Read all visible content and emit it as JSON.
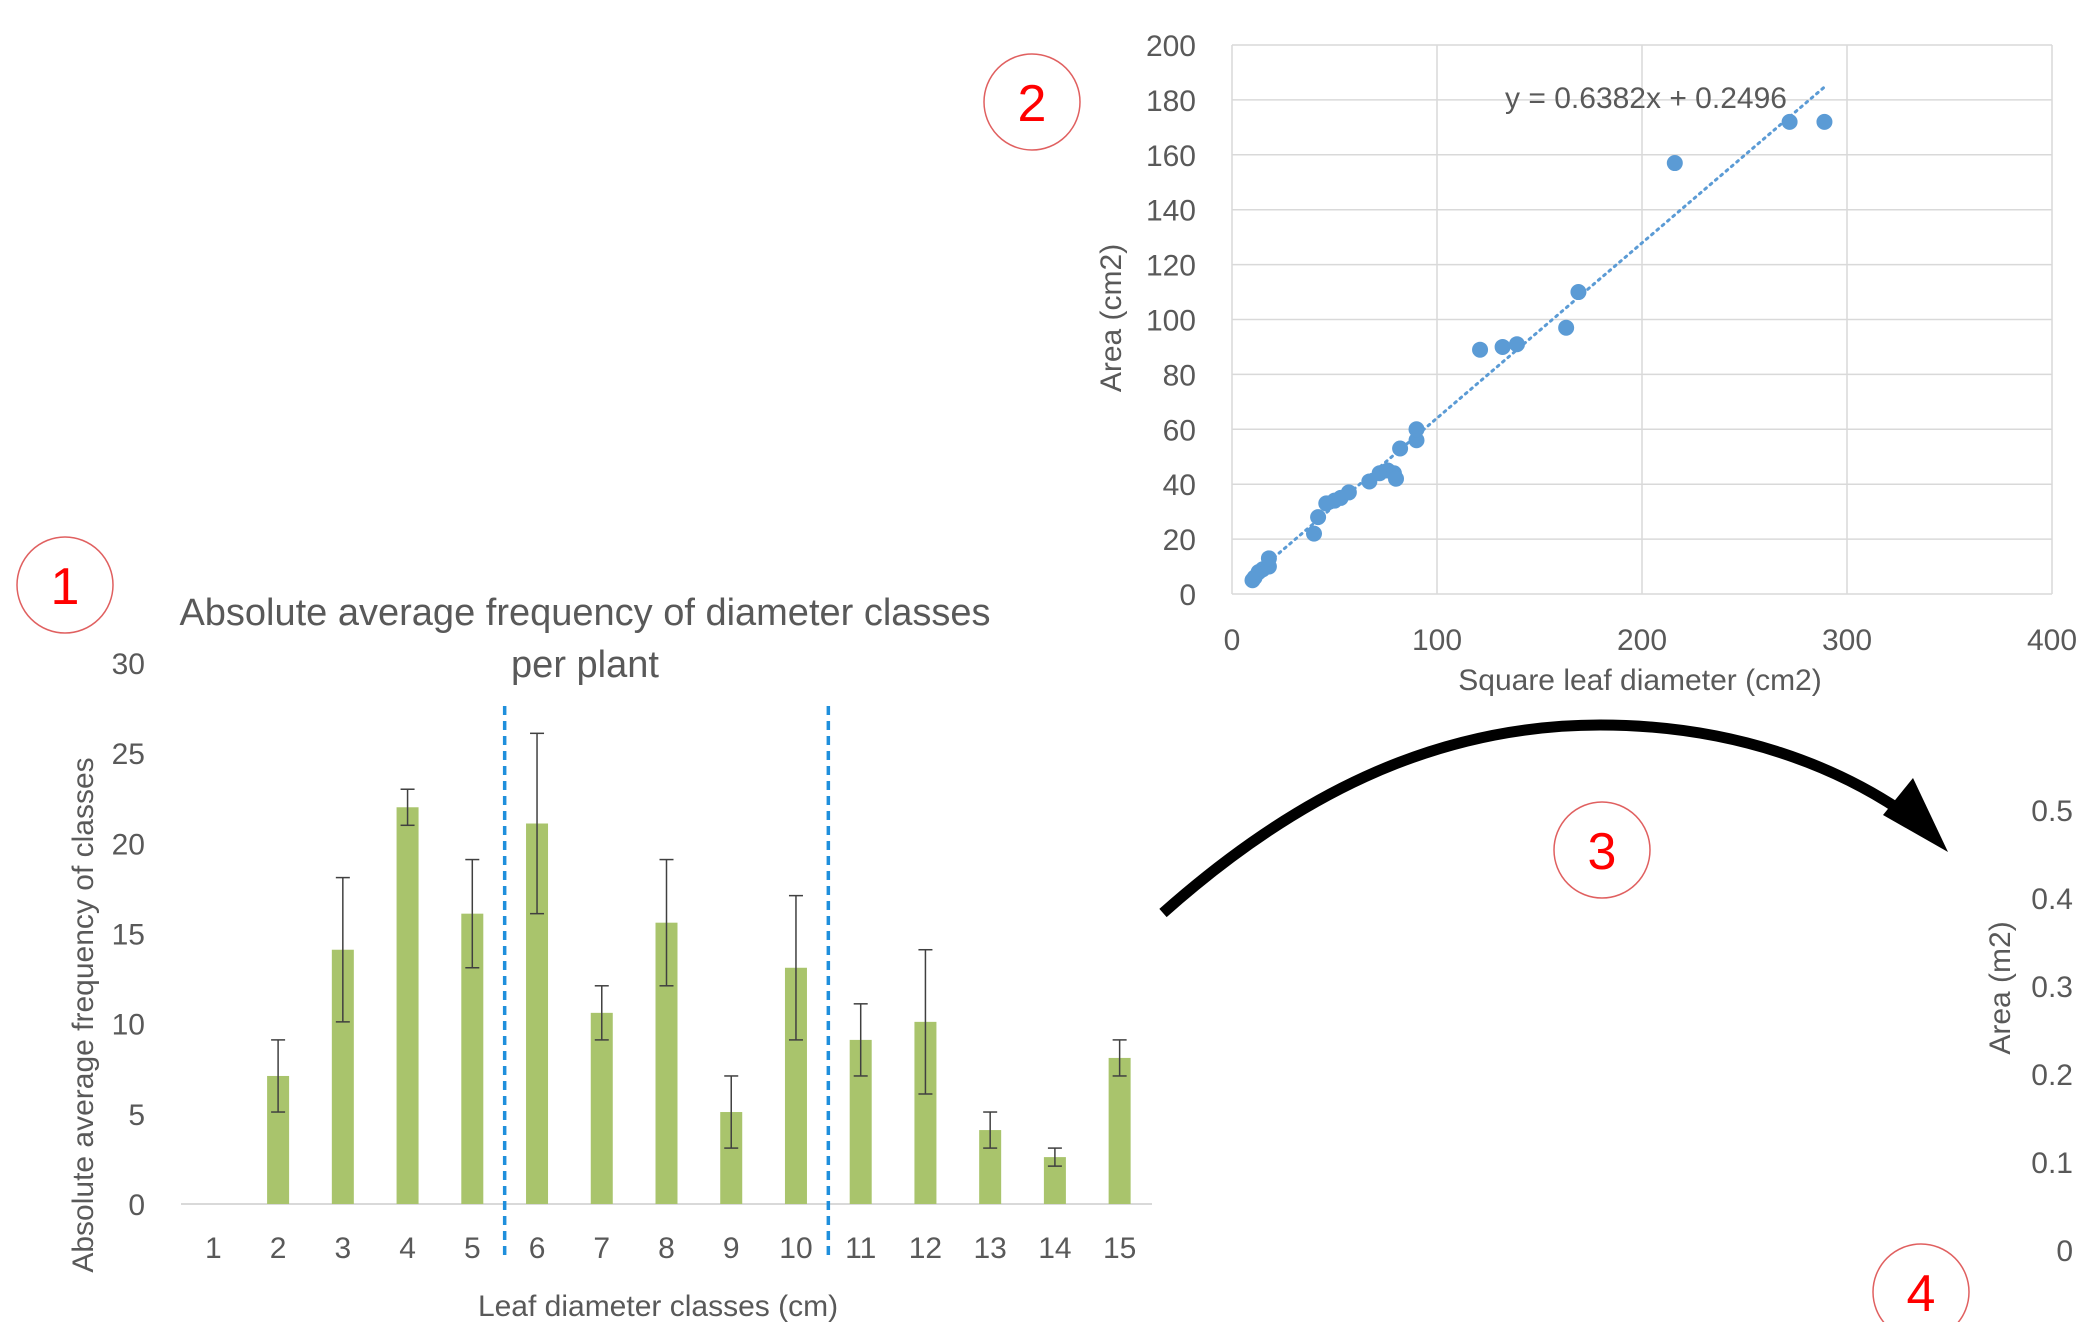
{
  "markers": [
    "1",
    "2",
    "3",
    "4"
  ],
  "chart_data": [
    {
      "type": "bar",
      "title_line1": "Absolute average frequency of diameter classes",
      "title_line2": "per plant",
      "xlabel": "Leaf diameter classes (cm)",
      "ylabel": "Absolute average frequency of classes",
      "categories": [
        "1",
        "2",
        "3",
        "4",
        "5",
        "6",
        "7",
        "8",
        "9",
        "10",
        "11",
        "12",
        "13",
        "14",
        "15"
      ],
      "values": [
        0,
        7.1,
        14.1,
        22.0,
        16.1,
        21.1,
        10.6,
        15.6,
        5.1,
        13.1,
        9.1,
        10.1,
        4.1,
        2.6,
        8.1
      ],
      "error_bars": [
        null,
        [
          5.1,
          9.1
        ],
        [
          10.1,
          18.1
        ],
        [
          21.0,
          23.0
        ],
        [
          13.1,
          19.1
        ],
        [
          16.1,
          26.1
        ],
        [
          9.1,
          12.1
        ],
        [
          12.1,
          19.1
        ],
        [
          3.1,
          7.1
        ],
        [
          9.1,
          17.1
        ],
        [
          7.1,
          11.1
        ],
        [
          6.1,
          14.1
        ],
        [
          3.1,
          5.1
        ],
        [
          2.1,
          3.1
        ],
        [
          7.1,
          9.1
        ]
      ],
      "yticks": [
        "0",
        "5",
        "10",
        "15",
        "20",
        "25",
        "30"
      ],
      "ylim": [
        0,
        30
      ],
      "bar_color": "#a9c46c",
      "divider_color": "#1f8fdc",
      "dividers_after_categories": [
        "5",
        "10"
      ],
      "grid": false
    },
    {
      "type": "scatter",
      "xlabel": "Square leaf diameter (cm2)",
      "ylabel": "Area (cm2)",
      "trendline_label": "y = 0.6382x + 0.2496",
      "trendline": {
        "slope": 0.6382,
        "intercept": 0.2496,
        "x_range": [
          10,
          290
        ]
      },
      "xlim": [
        0,
        400
      ],
      "ylim": [
        0,
        200
      ],
      "xticks": [
        "0",
        "100",
        "200",
        "300",
        "400"
      ],
      "yticks": [
        "0",
        "20",
        "40",
        "60",
        "80",
        "100",
        "120",
        "140",
        "160",
        "180",
        "200"
      ],
      "point_color": "#5b9bd5",
      "grid": true,
      "points": [
        [
          10,
          5
        ],
        [
          11,
          6
        ],
        [
          13,
          8
        ],
        [
          15,
          9
        ],
        [
          18,
          10
        ],
        [
          18,
          13
        ],
        [
          40,
          22
        ],
        [
          42,
          28
        ],
        [
          46,
          33
        ],
        [
          50,
          34
        ],
        [
          53,
          35
        ],
        [
          57,
          37
        ],
        [
          67,
          41
        ],
        [
          72,
          44
        ],
        [
          76,
          45
        ],
        [
          79,
          44
        ],
        [
          80,
          42
        ],
        [
          82,
          53
        ],
        [
          90,
          56
        ],
        [
          90,
          60
        ],
        [
          121,
          89
        ],
        [
          132,
          90
        ],
        [
          139,
          91
        ],
        [
          163,
          97
        ],
        [
          169,
          110
        ],
        [
          216,
          157
        ],
        [
          272,
          172
        ],
        [
          289,
          172
        ]
      ]
    },
    {
      "type": "scatter",
      "ylabel": "Area (m2)",
      "yticks": [
        "0",
        "0.1",
        "0.2",
        "0.3",
        "0.4",
        "0.5"
      ],
      "ylim": [
        0,
        0.5
      ]
    }
  ]
}
